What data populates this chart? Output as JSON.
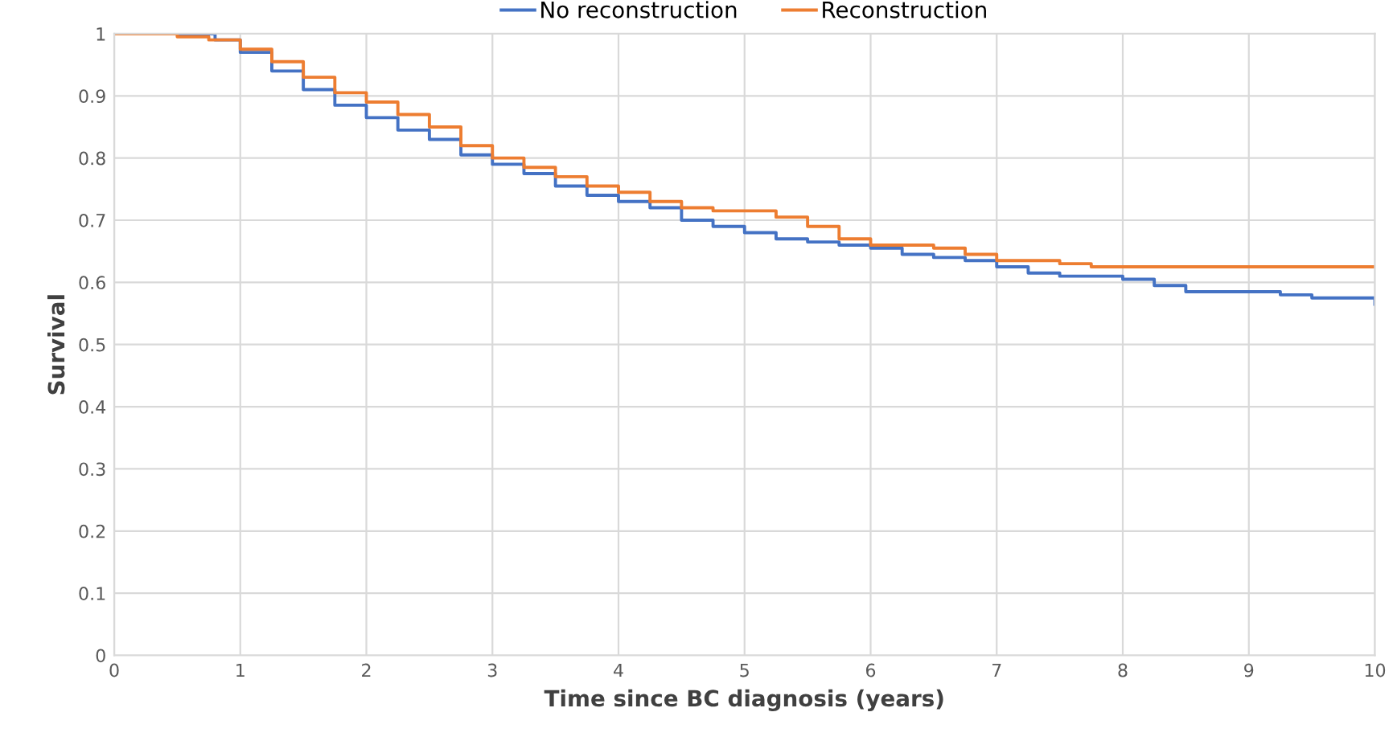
{
  "chart_data": {
    "type": "step",
    "xlabel": "Time since BC diagnosis (years)",
    "ylabel": "Survival",
    "xlim": [
      0,
      10
    ],
    "xticks": [
      0,
      1,
      2,
      3,
      4,
      5,
      6,
      7,
      8,
      9,
      10
    ],
    "ylim": [
      0,
      1
    ],
    "yticks": [
      0,
      0.1,
      0.2,
      0.3,
      0.4,
      0.5,
      0.6,
      0.7,
      0.8,
      0.9,
      1
    ],
    "grid": true,
    "legend": "top",
    "marker": "none",
    "line_style": "solid",
    "series": [
      {
        "name": "No reconstruction",
        "color": "#4472c4",
        "x": [
          0,
          0.7,
          0.8,
          1,
          1.25,
          1.5,
          1.75,
          2,
          2.25,
          2.5,
          2.75,
          3,
          3.25,
          3.5,
          3.75,
          4,
          4.25,
          4.5,
          4.75,
          5,
          5.25,
          5.5,
          5.75,
          6,
          6.25,
          6.5,
          6.75,
          7,
          7.25,
          7.5,
          8,
          8.25,
          8.5,
          9,
          9.25,
          9.5,
          10
        ],
        "values": [
          1.0,
          1.0,
          0.99,
          0.97,
          0.94,
          0.91,
          0.885,
          0.865,
          0.845,
          0.83,
          0.805,
          0.79,
          0.775,
          0.755,
          0.74,
          0.73,
          0.72,
          0.7,
          0.69,
          0.68,
          0.67,
          0.665,
          0.66,
          0.655,
          0.645,
          0.64,
          0.635,
          0.625,
          0.615,
          0.61,
          0.605,
          0.595,
          0.585,
          0.585,
          0.58,
          0.575,
          0.565
        ]
      },
      {
        "name": "Reconstruction",
        "color": "#ed7d31",
        "x": [
          0,
          0.5,
          0.75,
          1,
          1.25,
          1.5,
          1.75,
          2,
          2.25,
          2.5,
          2.75,
          3,
          3.25,
          3.5,
          3.75,
          4,
          4.25,
          4.5,
          4.75,
          5,
          5.25,
          5.5,
          5.75,
          6,
          6.5,
          6.75,
          7,
          7.5,
          7.75,
          10
        ],
        "values": [
          1.0,
          0.995,
          0.99,
          0.975,
          0.955,
          0.93,
          0.905,
          0.89,
          0.87,
          0.85,
          0.82,
          0.8,
          0.785,
          0.77,
          0.755,
          0.745,
          0.73,
          0.72,
          0.715,
          0.715,
          0.705,
          0.69,
          0.67,
          0.66,
          0.655,
          0.645,
          0.635,
          0.63,
          0.625,
          0.625
        ]
      }
    ]
  }
}
